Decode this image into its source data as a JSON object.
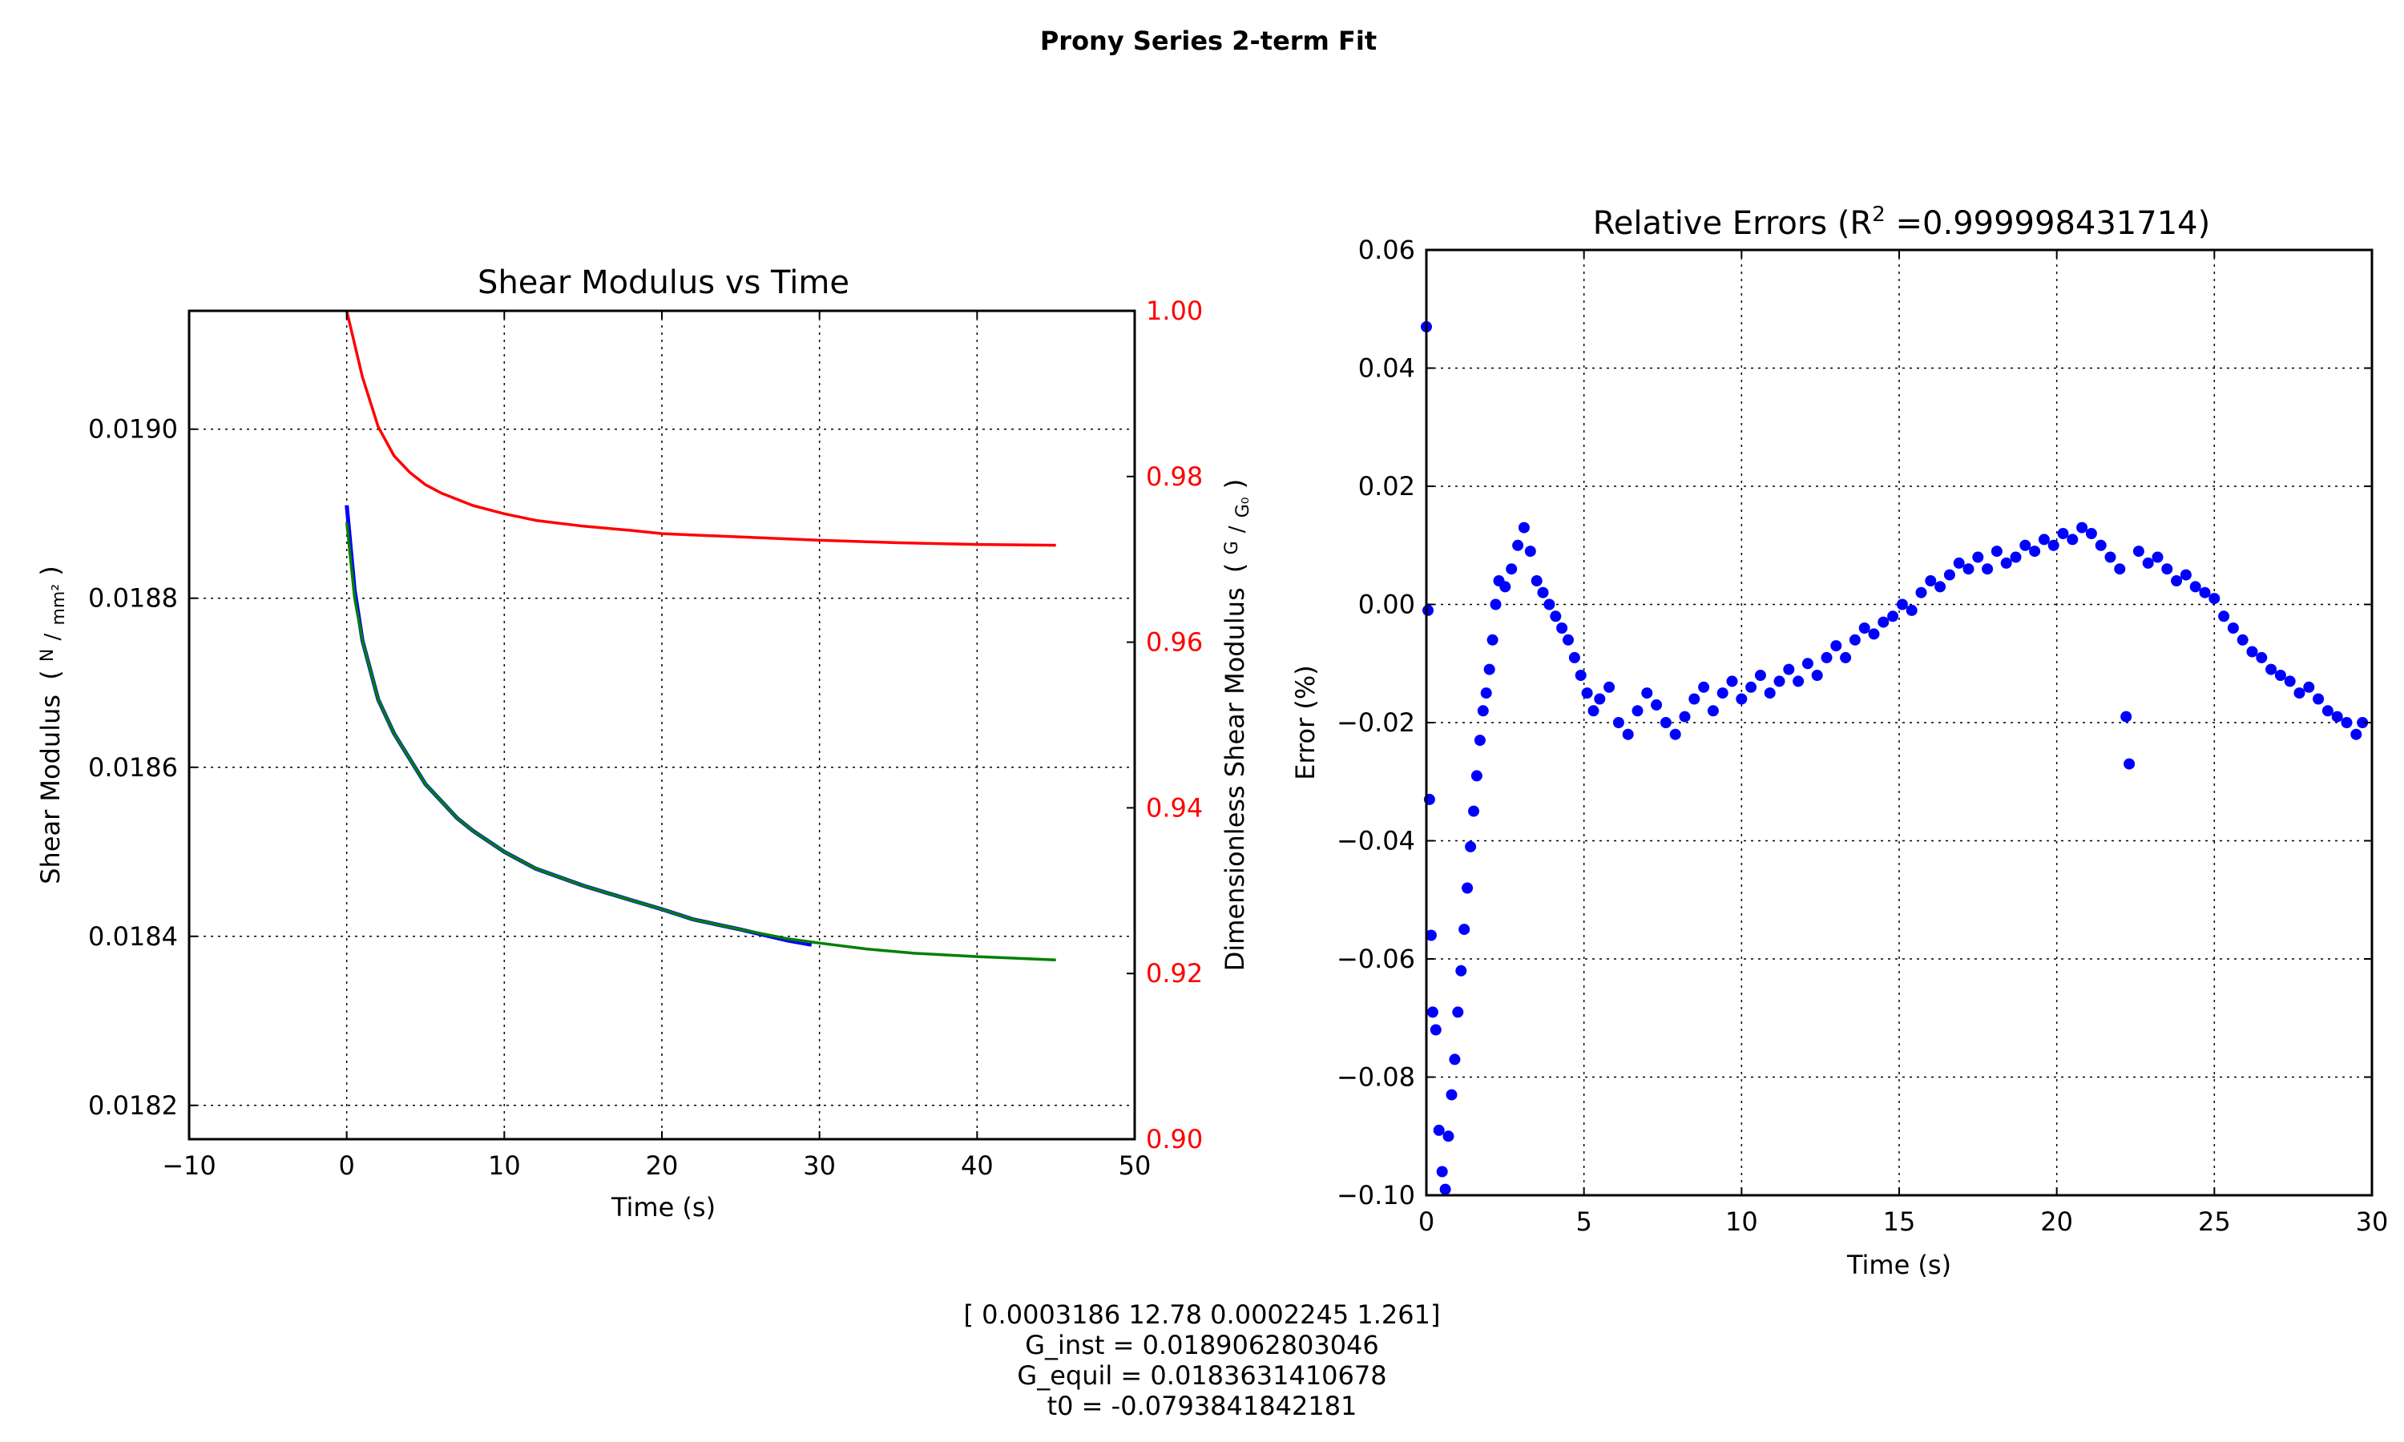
{
  "suptitle": "Prony Series 2-term Fit",
  "chart_data": [
    {
      "type": "line",
      "title": "Shear Modulus vs Time",
      "xlabel": "Time (s)",
      "ylabel_left": "Shear Modulus",
      "ylabel_left_unit_num": "N",
      "ylabel_left_unit_den": "mm²",
      "ylabel_right": "Dimensionless Shear Modulus",
      "ylabel_right_unit_num": "G",
      "ylabel_right_unit_den": "G₀",
      "xlim": [
        -10,
        50
      ],
      "ylim_left": [
        0.01816,
        0.01914
      ],
      "ylim_right": [
        0.9,
        1.0
      ],
      "xticks": [
        "−10",
        "0",
        "10",
        "20",
        "30",
        "40",
        "50"
      ],
      "yticks_left": [
        "0.0182",
        "0.0184",
        "0.0186",
        "0.0188",
        "0.0190"
      ],
      "yticks_right": [
        "0.90",
        "0.92",
        "0.94",
        "0.96",
        "0.98",
        "1.00"
      ],
      "grid": true,
      "colors": {
        "data": "#0000ff",
        "fit": "#008000",
        "dimensionless": "#ff0000",
        "right_axis": "#ff0000"
      },
      "series": [
        {
          "axis": "left",
          "x": [
            0,
            0.5,
            1,
            2,
            3,
            4,
            5,
            6,
            7,
            8,
            10,
            12,
            15,
            18,
            20,
            22,
            25,
            28,
            29.5
          ],
          "y": [
            0.01891,
            0.01881,
            0.01875,
            0.01868,
            0.01864,
            0.01861,
            0.01858,
            0.01856,
            0.01854,
            0.018525,
            0.0185,
            0.01848,
            0.01846,
            0.018443,
            0.018432,
            0.01842,
            0.018408,
            0.018395,
            0.01839
          ]
        },
        {
          "axis": "left",
          "x": [
            0,
            0.5,
            1,
            2,
            3,
            4,
            5,
            6,
            7,
            8,
            10,
            12,
            15,
            18,
            20,
            22,
            25,
            28,
            30,
            33,
            36,
            40,
            45
          ],
          "y": [
            0.01889,
            0.0188,
            0.01875,
            0.01868,
            0.01864,
            0.01861,
            0.01858,
            0.01856,
            0.01854,
            0.018525,
            0.0185,
            0.01848,
            0.01846,
            0.018443,
            0.018432,
            0.01842,
            0.018408,
            0.018397,
            0.018392,
            0.018385,
            0.01838,
            0.018376,
            0.018372
          ]
        },
        {
          "axis": "right",
          "x": [
            0,
            0.5,
            1,
            2,
            3,
            4,
            5,
            6,
            8,
            10,
            12,
            15,
            18,
            20,
            25,
            30,
            35,
            40,
            45
          ],
          "y": [
            1.0,
            0.996,
            0.992,
            0.986,
            0.9825,
            0.9805,
            0.979,
            0.978,
            0.9765,
            0.9755,
            0.9747,
            0.974,
            0.9735,
            0.9731,
            0.9727,
            0.9723,
            0.972,
            0.9718,
            0.9717
          ]
        }
      ]
    },
    {
      "type": "scatter",
      "title": "Relative Errors (R",
      "title_sup": "2",
      "title_value": " =0.999998431714)",
      "xlabel": "Time (s)",
      "ylabel": "Error (%)",
      "xlim": [
        0,
        30
      ],
      "ylim": [
        -0.1,
        0.06
      ],
      "xticks": [
        "0",
        "5",
        "10",
        "15",
        "20",
        "25",
        "30"
      ],
      "yticks": [
        "−0.10",
        "−0.08",
        "−0.06",
        "−0.04",
        "−0.02",
        "0.00",
        "0.02",
        "0.04",
        "0.06"
      ],
      "grid": true,
      "colors": {
        "points": "#0000ff"
      },
      "series": [
        {
          "x": [
            0.0,
            0.05,
            0.1,
            0.15,
            0.2,
            0.3,
            0.4,
            0.5,
            0.6,
            0.7,
            0.8,
            0.9,
            1.0,
            1.1,
            1.2,
            1.3,
            1.4,
            1.5,
            1.6,
            1.7,
            1.8,
            1.9,
            2.0,
            2.1,
            2.2,
            2.3,
            2.5,
            2.7,
            2.9,
            3.1,
            3.3,
            3.5,
            3.7,
            3.9,
            4.1,
            4.3,
            4.5,
            4.7,
            4.9,
            5.1,
            5.3,
            5.5,
            5.8,
            6.1,
            6.4,
            6.7,
            7.0,
            7.3,
            7.6,
            7.9,
            8.2,
            8.5,
            8.8,
            9.1,
            9.4,
            9.7,
            10.0,
            10.3,
            10.6,
            10.9,
            11.2,
            11.5,
            11.8,
            12.1,
            12.4,
            12.7,
            13.0,
            13.3,
            13.6,
            13.9,
            14.2,
            14.5,
            14.8,
            15.1,
            15.4,
            15.7,
            16.0,
            16.3,
            16.6,
            16.9,
            17.2,
            17.5,
            17.8,
            18.1,
            18.4,
            18.7,
            19.0,
            19.3,
            19.6,
            19.9,
            20.2,
            20.5,
            20.8,
            21.1,
            21.4,
            21.7,
            22.0,
            22.2,
            22.3,
            22.6,
            22.9,
            23.2,
            23.5,
            23.8,
            24.1,
            24.4,
            24.7,
            25.0,
            25.3,
            25.6,
            25.9,
            26.2,
            26.5,
            26.8,
            27.1,
            27.4,
            27.7,
            28.0,
            28.3,
            28.6,
            28.9,
            29.2,
            29.5,
            29.7
          ],
          "y": [
            0.047,
            -0.001,
            -0.033,
            -0.056,
            -0.069,
            -0.072,
            -0.089,
            -0.096,
            -0.099,
            -0.09,
            -0.083,
            -0.077,
            -0.069,
            -0.062,
            -0.055,
            -0.048,
            -0.041,
            -0.035,
            -0.029,
            -0.023,
            -0.018,
            -0.015,
            -0.011,
            -0.006,
            0.0,
            0.004,
            0.003,
            0.006,
            0.01,
            0.013,
            0.009,
            0.004,
            0.002,
            0.0,
            -0.002,
            -0.004,
            -0.006,
            -0.009,
            -0.012,
            -0.015,
            -0.018,
            -0.016,
            -0.014,
            -0.02,
            -0.022,
            -0.018,
            -0.015,
            -0.017,
            -0.02,
            -0.022,
            -0.019,
            -0.016,
            -0.014,
            -0.018,
            -0.015,
            -0.013,
            -0.016,
            -0.014,
            -0.012,
            -0.015,
            -0.013,
            -0.011,
            -0.013,
            -0.01,
            -0.012,
            -0.009,
            -0.007,
            -0.009,
            -0.006,
            -0.004,
            -0.005,
            -0.003,
            -0.002,
            0.0,
            -0.001,
            0.002,
            0.004,
            0.003,
            0.005,
            0.007,
            0.006,
            0.008,
            0.006,
            0.009,
            0.007,
            0.008,
            0.01,
            0.009,
            0.011,
            0.01,
            0.012,
            0.011,
            0.013,
            0.012,
            0.01,
            0.008,
            0.006,
            -0.019,
            -0.027,
            0.009,
            0.007,
            0.008,
            0.006,
            0.004,
            0.005,
            0.003,
            0.002,
            0.001,
            -0.002,
            -0.004,
            -0.006,
            -0.008,
            -0.009,
            -0.011,
            -0.012,
            -0.013,
            -0.015,
            -0.014,
            -0.016,
            -0.018,
            -0.019,
            -0.02,
            -0.022,
            -0.02
          ]
        }
      ]
    }
  ],
  "footer": {
    "params": "[ 0.0003186  12.78  0.0002245  1.261]",
    "g_inst": "G_inst = 0.0189062803046",
    "g_equil": "G_equil = 0.0183631410678",
    "t0": "t0 = -0.0793841842181"
  }
}
